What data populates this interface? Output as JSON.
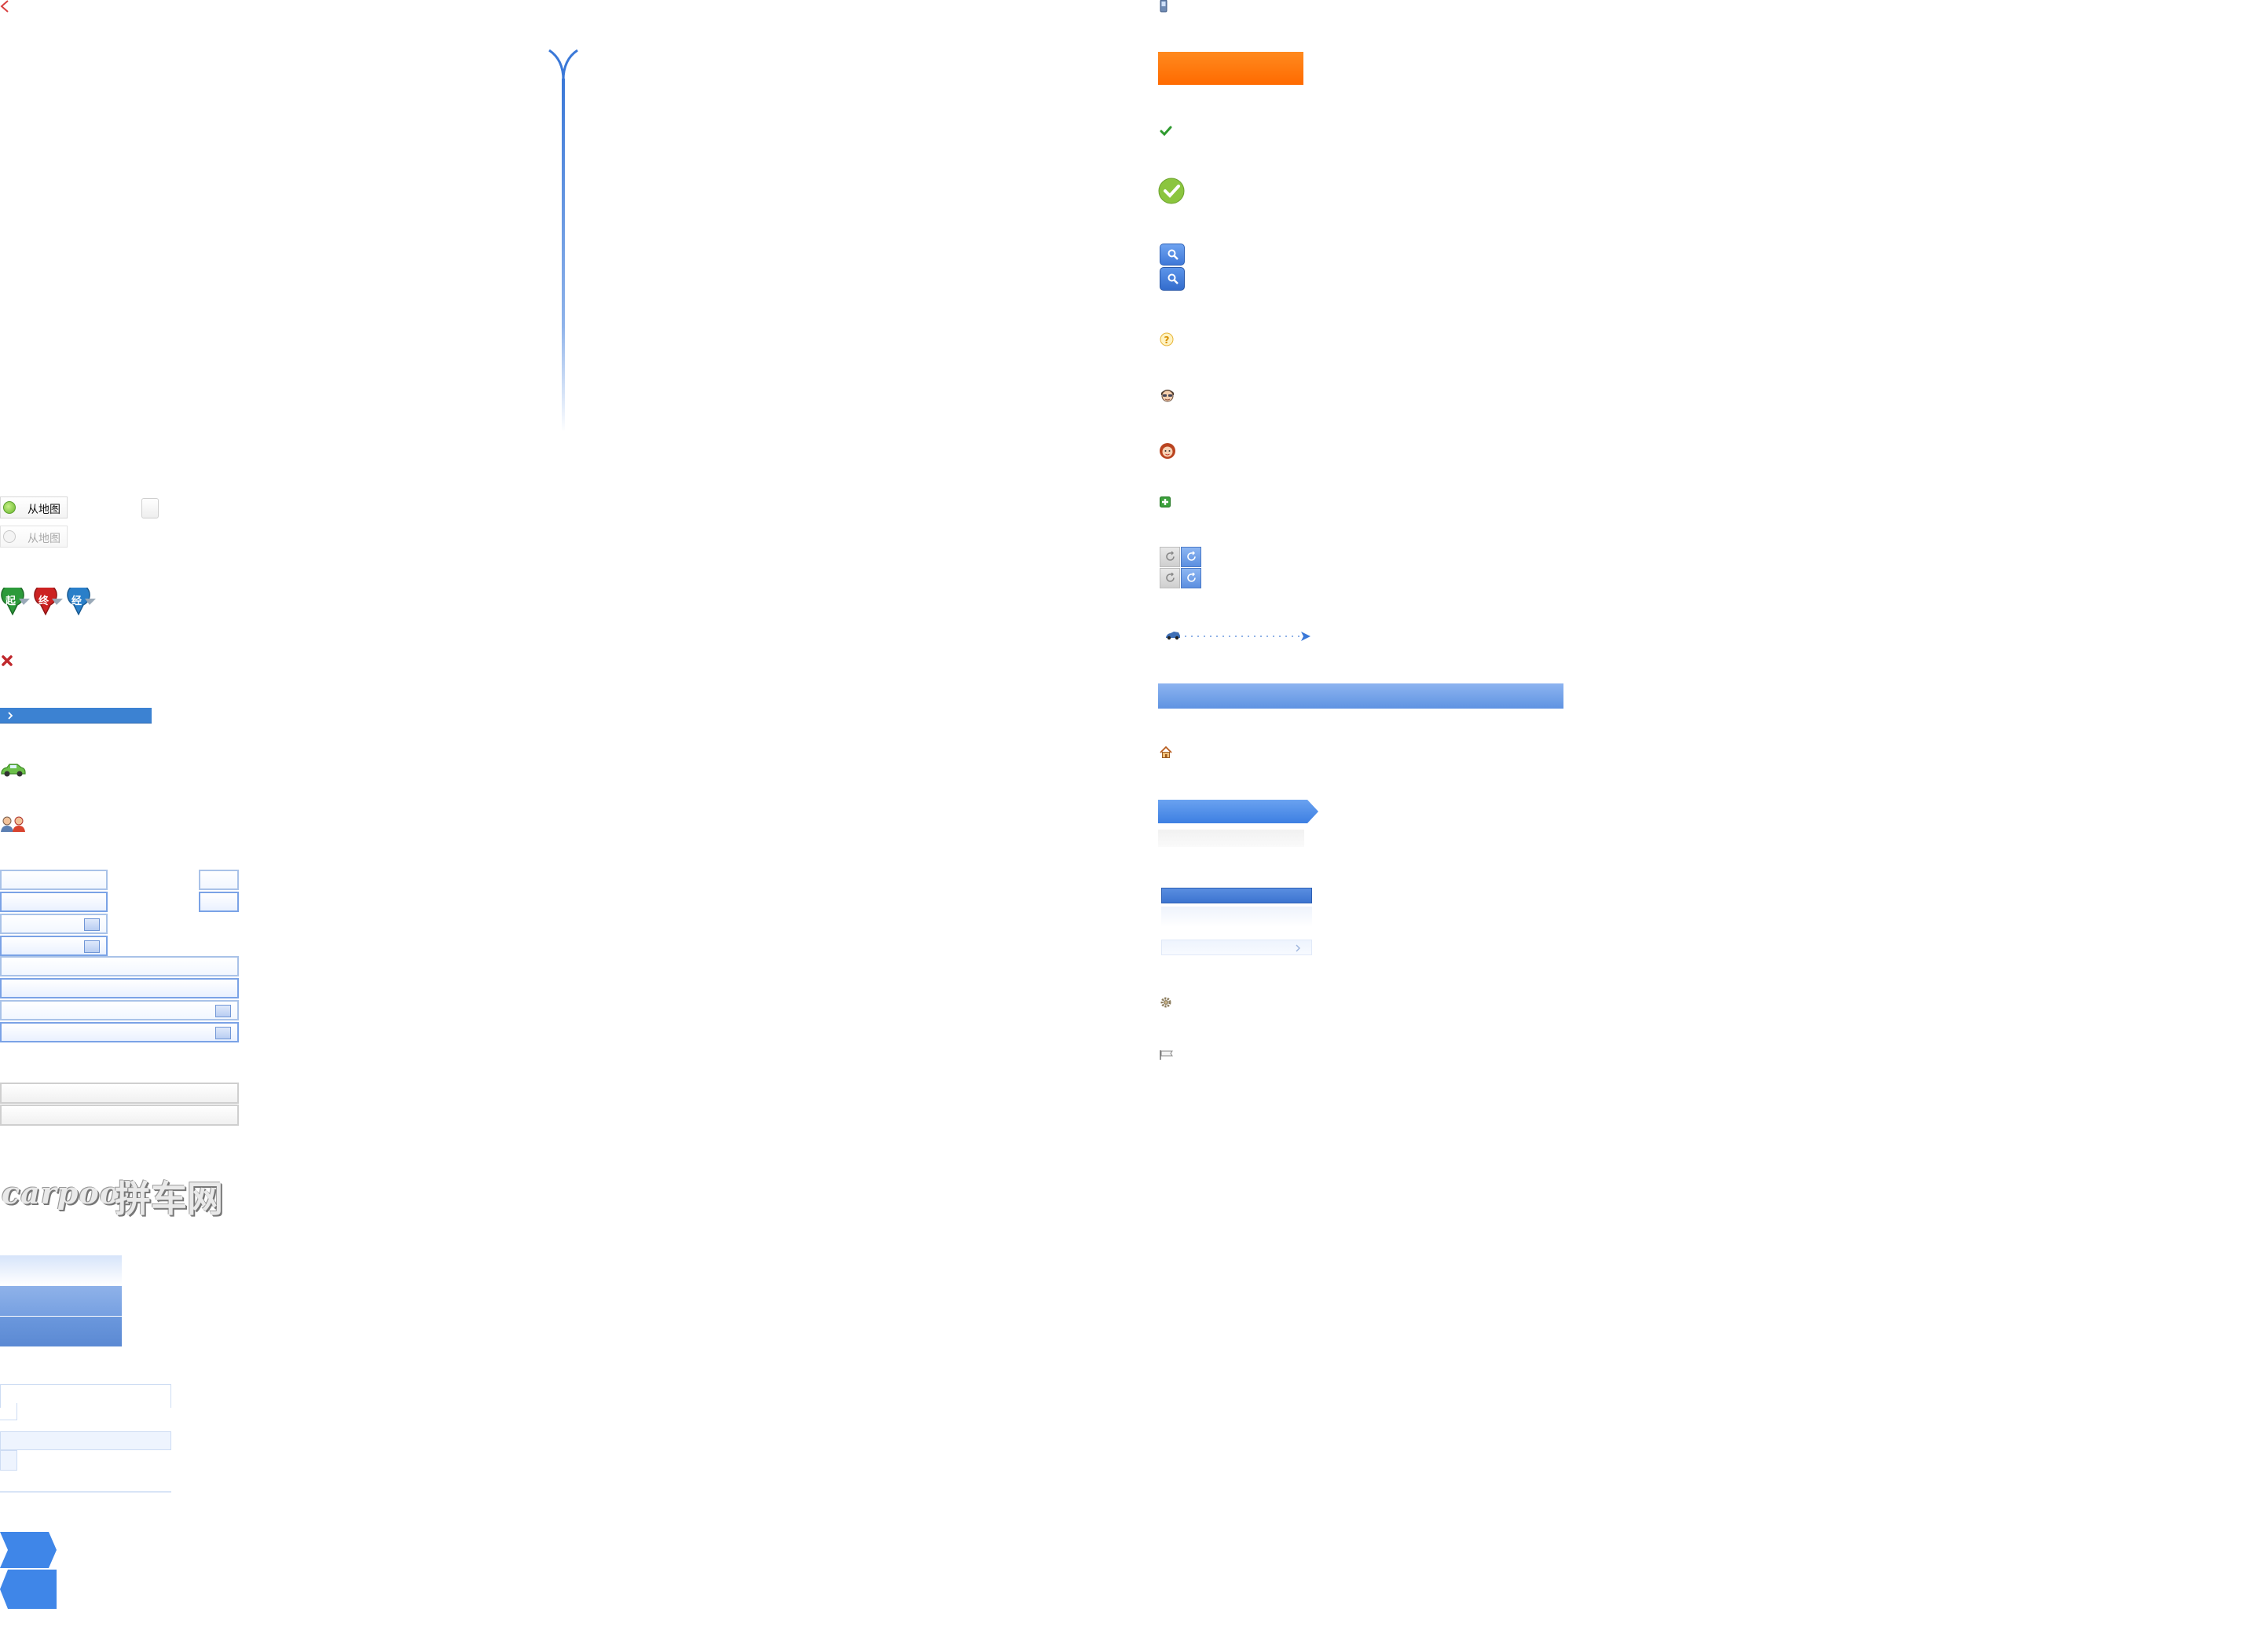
{
  "map_pick": {
    "active_label": "从地图",
    "inactive_label": "从地图"
  },
  "markers": [
    {
      "label": "起",
      "color": "#2c9a3a"
    },
    {
      "label": "终",
      "color": "#cc2222"
    },
    {
      "label": "经",
      "color": "#2a7fc9"
    }
  ],
  "logo": {
    "latin": "carpool",
    "chinese": "拼车网"
  },
  "colors": {
    "accent_orange": "#ff7200",
    "accent_blue": "#3f86e8",
    "bar_blue": "#3c82d2",
    "light_blue": "#a9c2e8",
    "check_green": "#8bc53f"
  },
  "icons": [
    "close-icon",
    "arrow-line",
    "radio-icon",
    "checkbox-icon",
    "pin-icon",
    "x-icon",
    "chevron-right-icon",
    "car-icon",
    "users-icon",
    "calendar-icon",
    "phone-icon",
    "check-icon",
    "check-circle-icon",
    "search-icon",
    "question-icon",
    "male-avatar-icon",
    "female-avatar-icon",
    "plus-icon",
    "refresh-icon",
    "route-icon",
    "home-icon",
    "gear-icon",
    "flag-icon"
  ]
}
